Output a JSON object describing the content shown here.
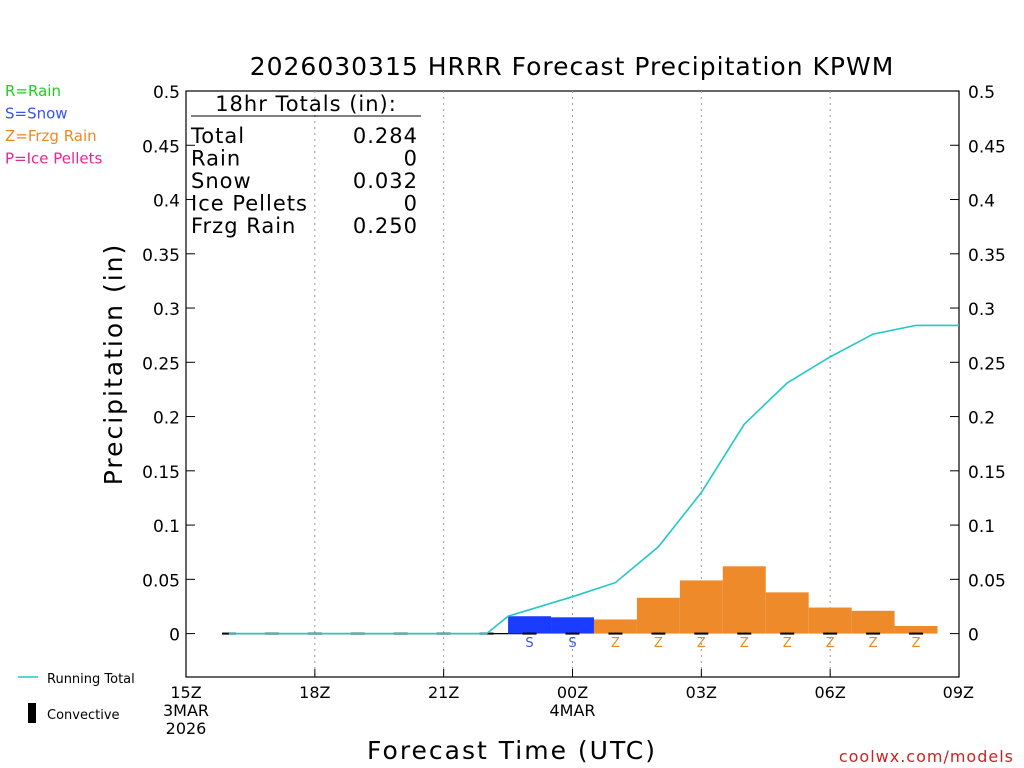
{
  "colors": {
    "rain": "#22cc22",
    "snow": "#3355ee",
    "frzg": "#ee8822",
    "ice": "#ee2299",
    "snow_bar": "#1a3cff",
    "frzg_bar": "#ee8a2a",
    "running": "#22c8c8",
    "credit": "#cc2222"
  },
  "chart_data": {
    "type": "bar",
    "title": "2026030315 HRRR Forecast Precipitation KPWM",
    "xlabel": "Forecast Time (UTC)",
    "ylabel": "Precipitation (in)",
    "ylim": [
      -0.04,
      0.5
    ],
    "yticks": [
      0,
      0.05,
      0.1,
      0.15,
      0.2,
      0.25,
      0.3,
      0.35,
      0.4,
      0.45,
      0.5
    ],
    "ytick_labels": [
      "0",
      "0.05",
      "0.1",
      "0.15",
      "0.2",
      "0.25",
      "0.3",
      "0.35",
      "0.4",
      "0.45",
      "0.5"
    ],
    "xlim": [
      0,
      18
    ],
    "xgrid_hours": [
      3,
      6,
      9,
      12,
      15
    ],
    "xticks": [
      {
        "hour": 0,
        "lines": [
          "15Z",
          "3MAR",
          "2026"
        ]
      },
      {
        "hour": 3,
        "lines": [
          "18Z"
        ]
      },
      {
        "hour": 6,
        "lines": [
          "21Z"
        ]
      },
      {
        "hour": 9,
        "lines": [
          "00Z",
          "4MAR"
        ]
      },
      {
        "hour": 12,
        "lines": [
          "03Z"
        ]
      },
      {
        "hour": 15,
        "lines": [
          "06Z"
        ]
      },
      {
        "hour": 18,
        "lines": [
          "09Z"
        ]
      }
    ],
    "bars": [
      {
        "hour": 8,
        "value": 0.016,
        "ptype": "S"
      },
      {
        "hour": 9,
        "value": 0.015,
        "ptype": "S"
      },
      {
        "hour": 10,
        "value": 0.013,
        "ptype": "Z"
      },
      {
        "hour": 11,
        "value": 0.033,
        "ptype": "Z"
      },
      {
        "hour": 12,
        "value": 0.049,
        "ptype": "Z"
      },
      {
        "hour": 13,
        "value": 0.062,
        "ptype": "Z"
      },
      {
        "hour": 14,
        "value": 0.038,
        "ptype": "Z"
      },
      {
        "hour": 15,
        "value": 0.024,
        "ptype": "Z"
      },
      {
        "hour": 16,
        "value": 0.021,
        "ptype": "Z"
      },
      {
        "hour": 17,
        "value": 0.007,
        "ptype": "Z"
      }
    ],
    "running_total": [
      {
        "hour": 1,
        "value": 0
      },
      {
        "hour": 7,
        "value": 0
      },
      {
        "hour": 7.5,
        "value": 0.016
      },
      {
        "hour": 9,
        "value": 0.034
      },
      {
        "hour": 10,
        "value": 0.047
      },
      {
        "hour": 11,
        "value": 0.08
      },
      {
        "hour": 12,
        "value": 0.13
      },
      {
        "hour": 13,
        "value": 0.193
      },
      {
        "hour": 14,
        "value": 0.231
      },
      {
        "hour": 15,
        "value": 0.255
      },
      {
        "hour": 16,
        "value": 0.276
      },
      {
        "hour": 17,
        "value": 0.284
      },
      {
        "hour": 18,
        "value": 0.284
      }
    ],
    "convective_hours": [
      1,
      2,
      3,
      4,
      5,
      6,
      7,
      8,
      9,
      10,
      11,
      12,
      13,
      14,
      15,
      16,
      17
    ]
  },
  "legend": {
    "top": [
      {
        "text": "R=Rain",
        "key": "rain"
      },
      {
        "text": "S=Snow",
        "key": "snow"
      },
      {
        "text": "Z=Frzg Rain",
        "key": "frzg"
      },
      {
        "text": "P=Ice Pellets",
        "key": "ice"
      }
    ],
    "running_total": "Running Total",
    "convective": "Convective"
  },
  "totals": {
    "header": "18hr Totals (in):",
    "rows": [
      {
        "label": "Total",
        "value": "0.284"
      },
      {
        "label": "Rain",
        "value": "0"
      },
      {
        "label": "Snow",
        "value": "0.032"
      },
      {
        "label": "Ice Pellets",
        "value": "0"
      },
      {
        "label": "Frzg Rain",
        "value": "0.250"
      }
    ]
  },
  "credit": "coolwx.com/models"
}
